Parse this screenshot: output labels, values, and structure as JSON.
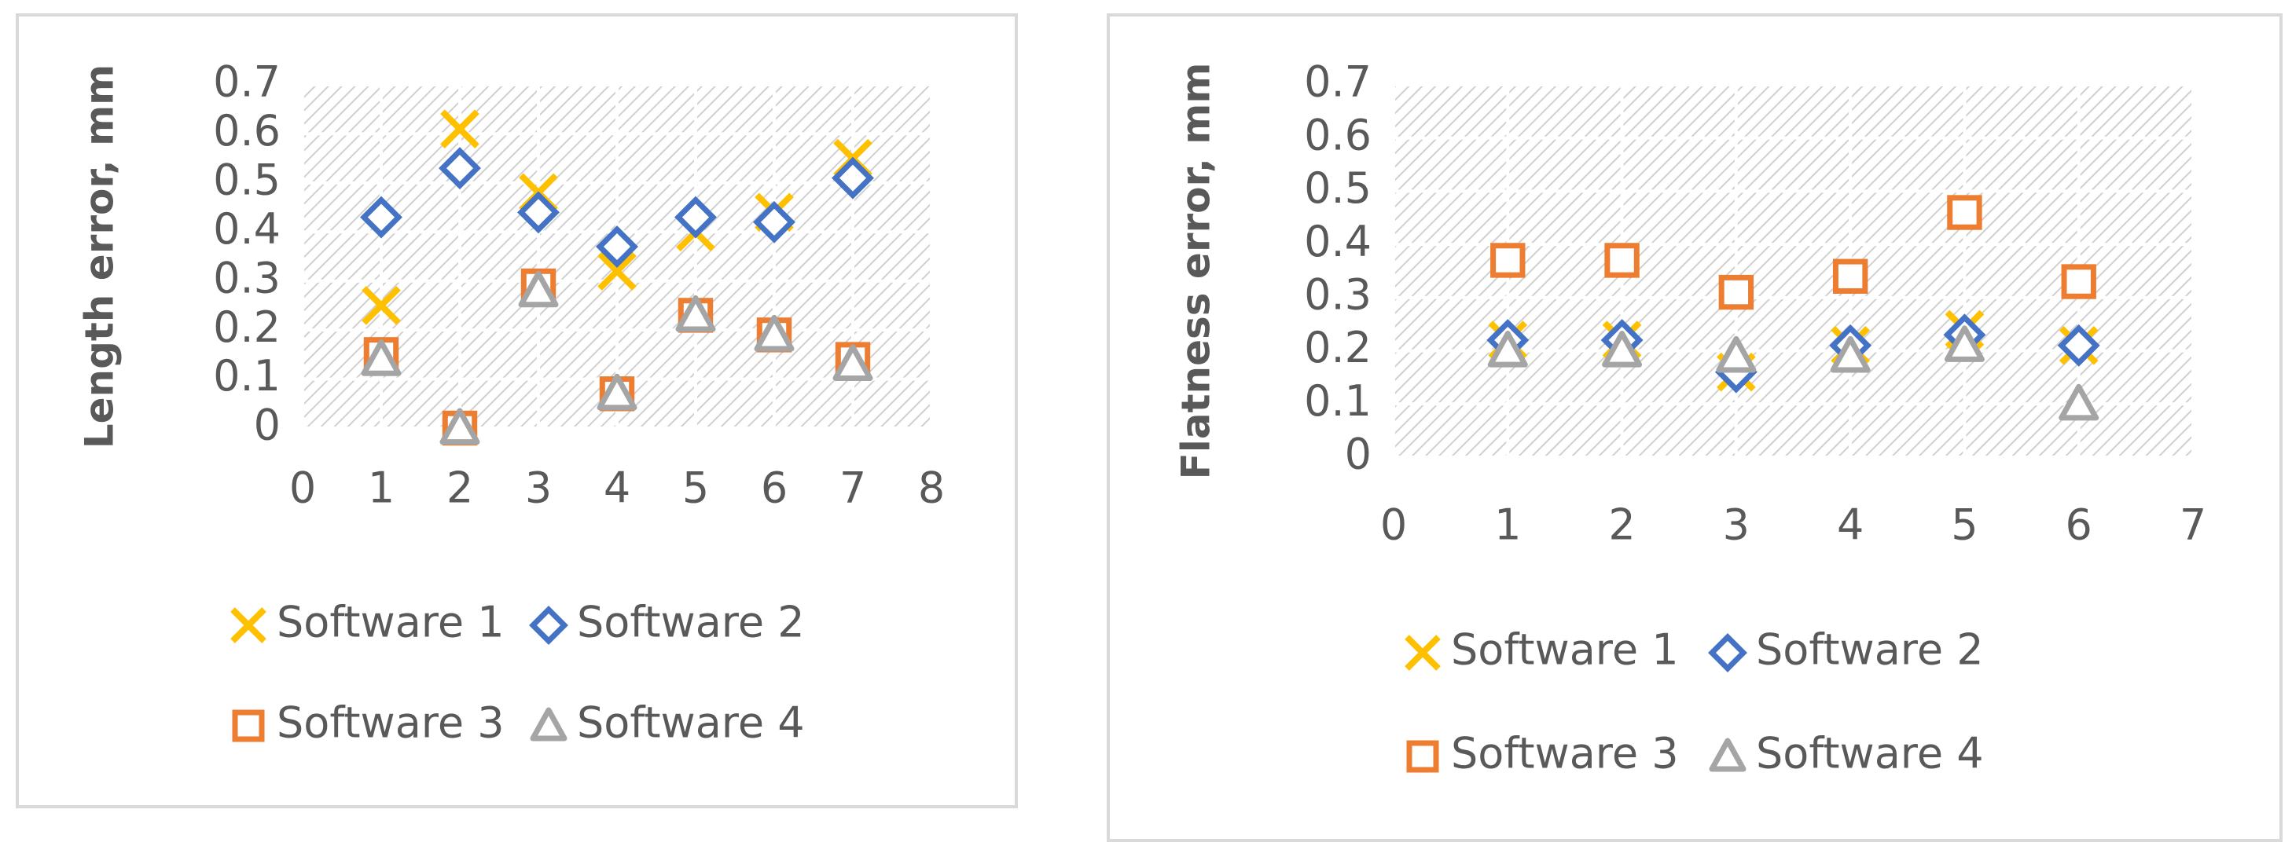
{
  "chart_data": [
    {
      "type": "scatter",
      "y_label": "Length error, mm",
      "x": [
        1,
        2,
        3,
        4,
        5,
        6,
        7
      ],
      "series": [
        {
          "name": "Software 1",
          "color": "#FFC000",
          "marker": "x",
          "values": [
            0.25,
            0.61,
            0.48,
            0.32,
            0.4,
            0.44,
            0.55
          ]
        },
        {
          "name": "Software 2",
          "color": "#4472C4",
          "marker": "diamond",
          "values": [
            0.43,
            0.53,
            0.44,
            0.37,
            0.43,
            0.42,
            0.51
          ]
        },
        {
          "name": "Software 3",
          "color": "#ED7D31",
          "marker": "square",
          "values": [
            0.15,
            0.0,
            0.29,
            0.07,
            0.23,
            0.19,
            0.14
          ]
        },
        {
          "name": "Software 4",
          "color": "#A5A5A5",
          "marker": "triangle",
          "values": [
            0.14,
            0.0,
            0.28,
            0.07,
            0.23,
            0.19,
            0.13
          ]
        }
      ],
      "xlim": [
        0,
        8
      ],
      "xticks": [
        0,
        1,
        2,
        3,
        4,
        5,
        6,
        7,
        8
      ],
      "ylim": [
        0,
        0.7
      ],
      "yticks": [
        0,
        0.1,
        0.2,
        0.3,
        0.4,
        0.5,
        0.6,
        0.7
      ],
      "grid": true
    },
    {
      "type": "scatter",
      "y_label": "Flatness error, mm",
      "x": [
        1,
        2,
        3,
        4,
        5,
        6
      ],
      "series": [
        {
          "name": "Software 1",
          "color": "#FFC000",
          "marker": "x",
          "values": [
            0.22,
            0.22,
            0.16,
            0.21,
            0.24,
            0.21
          ]
        },
        {
          "name": "Software 2",
          "color": "#4472C4",
          "marker": "diamond",
          "values": [
            0.22,
            0.22,
            0.16,
            0.21,
            0.23,
            0.21
          ]
        },
        {
          "name": "Software 3",
          "color": "#ED7D31",
          "marker": "square",
          "values": [
            0.37,
            0.37,
            0.31,
            0.34,
            0.46,
            0.33
          ]
        },
        {
          "name": "Software 4",
          "color": "#A5A5A5",
          "marker": "triangle",
          "values": [
            0.2,
            0.2,
            0.19,
            0.19,
            0.21,
            0.1
          ]
        }
      ],
      "xlim": [
        0,
        7
      ],
      "xticks": [
        0,
        1,
        2,
        3,
        4,
        5,
        6,
        7
      ],
      "ylim": [
        0,
        0.7
      ],
      "yticks": [
        0,
        0.1,
        0.2,
        0.3,
        0.4,
        0.5,
        0.6,
        0.7
      ],
      "grid": true
    }
  ]
}
